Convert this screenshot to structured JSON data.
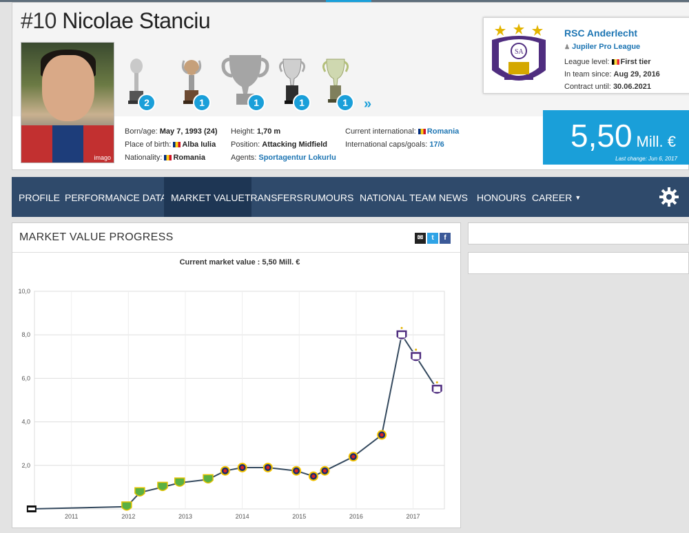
{
  "player": {
    "number": "#10",
    "first_name": "Nicolae",
    "last_name": "Stanciu",
    "photo_credit": "imago"
  },
  "trophies": [
    {
      "name": "trophy-1",
      "count": "2"
    },
    {
      "name": "trophy-2",
      "count": "1"
    },
    {
      "name": "trophy-3",
      "count": "1"
    },
    {
      "name": "trophy-4",
      "count": "1"
    },
    {
      "name": "trophy-5",
      "count": "1"
    }
  ],
  "trophy_more": "»",
  "info": {
    "born_label": "Born/age:",
    "born_value": "May 7, 1993 (24)",
    "place_label": "Place of birth:",
    "place_value": "Alba Iulia",
    "nat_label": "Nationality:",
    "nat_value": "Romania",
    "height_label": "Height:",
    "height_value": "1,70 m",
    "position_label": "Position:",
    "position_value": "Attacking Midfield",
    "agents_label": "Agents:",
    "agents_value": "Sportagentur Lokurlu",
    "intl_label": "Current international:",
    "intl_value": "Romania",
    "caps_label": "International caps/goals:",
    "caps_value": "17/6"
  },
  "club": {
    "name": "RSC Anderlecht",
    "league": "Jupiler Pro League",
    "level_label": "League level:",
    "level_value": "First tier",
    "since_label": "In team since:",
    "since_value": "Aug 29, 2016",
    "contract_label": "Contract until:",
    "contract_value": "30.06.2021"
  },
  "market_value": {
    "amount": "5,50",
    "unit": "Mill. €",
    "last_change": "Last change: Jun 6, 2017"
  },
  "nav": {
    "profile": "Profile",
    "performance": "Performance data",
    "market_value": "Market value",
    "transfers": "Transfers",
    "rumours": "Rumours",
    "national_team": "National team",
    "news": "News",
    "honours": "Honours",
    "career": "Career"
  },
  "panel": {
    "title": "MARKET VALUE PROGRESS",
    "share_mail": "✉",
    "share_twitter": "t",
    "share_facebook": "f"
  },
  "colors": {
    "accent": "#1a9fd9",
    "nav": "#2f4a6b",
    "nav_active": "#1e3654",
    "line": "#34495e"
  },
  "chart_data": {
    "type": "line",
    "title": "Current market value : 5,50 Mill. €",
    "ylim": [
      0,
      10
    ],
    "y_ticks": [
      "2,0",
      "4,0",
      "6,0",
      "8,0",
      "10,0"
    ],
    "x_ticks": [
      "2011",
      "2012",
      "2013",
      "2014",
      "2015",
      "2016",
      "2017"
    ],
    "grid": true,
    "series": [
      {
        "x": [
          2010.3,
          2011.97,
          2012.2,
          2012.6,
          2012.9,
          2013.4,
          2013.7,
          2014.0,
          2014.45,
          2014.95,
          2015.25,
          2015.45,
          2015.95,
          2016.45,
          2016.8,
          2017.05,
          2017.42
        ],
        "y": [
          0,
          0.1,
          0.75,
          1.0,
          1.2,
          1.35,
          1.75,
          1.9,
          1.9,
          1.75,
          1.5,
          1.75,
          2.4,
          3.4,
          8.0,
          7.0,
          5.5
        ],
        "clubs": [
          "unknown",
          "unirea",
          "unirea",
          "unirea",
          "unirea",
          "unirea",
          "steaua",
          "steaua",
          "steaua",
          "steaua",
          "steaua",
          "steaua",
          "steaua",
          "steaua",
          "anderlecht",
          "anderlecht",
          "anderlecht"
        ]
      }
    ]
  }
}
